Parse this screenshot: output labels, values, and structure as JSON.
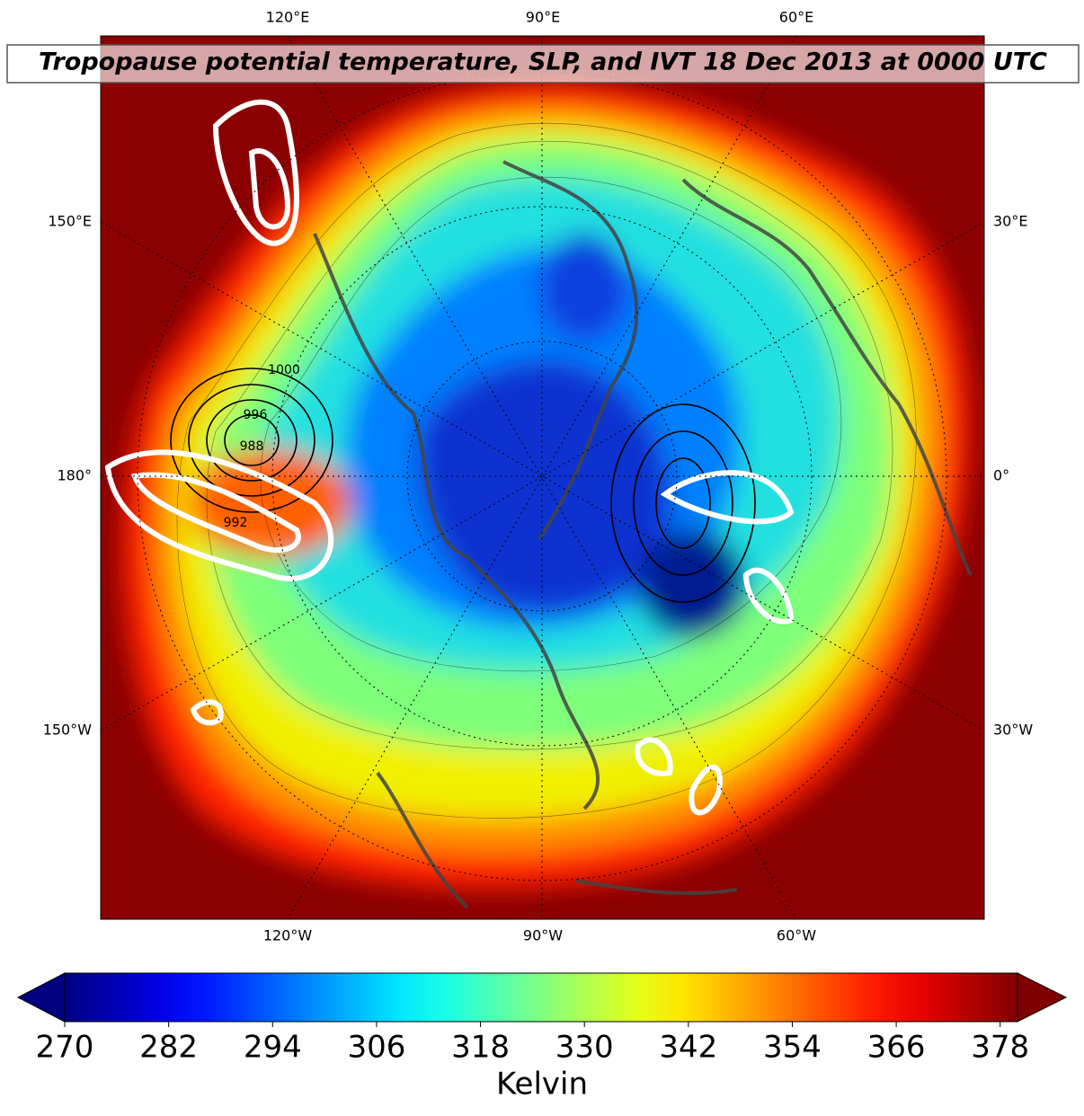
{
  "title": "Tropopause potential temperature, SLP, and IVT 18 Dec 2013 at 0000 UTC",
  "map": {
    "lon_labels": {
      "top": [
        "120°E",
        "90°E",
        "60°E"
      ],
      "left": [
        "150°E",
        "180°",
        "150°W"
      ],
      "right": [
        "30°E",
        "0°",
        "30°W"
      ],
      "bottom": [
        "120°W",
        "90°W",
        "60°W"
      ]
    },
    "contour_labels": [
      "1000",
      "996",
      "988",
      "992"
    ]
  },
  "colorbar": {
    "lim": [
      270,
      380
    ],
    "ticks": [
      270,
      282,
      294,
      306,
      318,
      330,
      342,
      354,
      366,
      378
    ],
    "label": "Kelvin",
    "colormap": "jet",
    "extend": "both"
  }
}
